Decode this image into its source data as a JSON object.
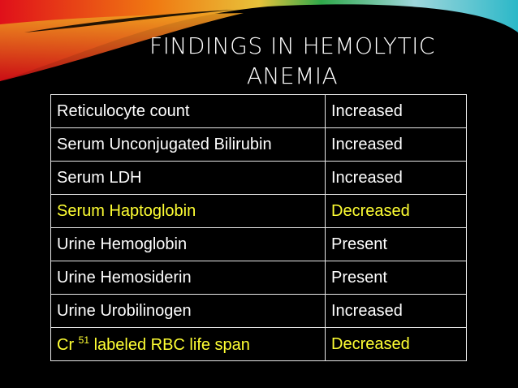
{
  "slide": {
    "title_line1": "FINDINGS IN HEMOLYTIC",
    "title_line2": "ANEMIA",
    "highlight_color": "#ffff33",
    "text_color": "#ffffff",
    "background_color": "#000000"
  },
  "table": {
    "rows": [
      {
        "finding": "Reticulocyte count",
        "result": "Increased",
        "highlight": false
      },
      {
        "finding": "Serum Unconjugated Bilirubin",
        "result": "Increased",
        "highlight": false
      },
      {
        "finding": "Serum LDH",
        "result": "Increased",
        "highlight": false
      },
      {
        "finding": "Serum Haptoglobin",
        "result": "Decreased",
        "highlight": true
      },
      {
        "finding": "Urine Hemoglobin",
        "result": "Present",
        "highlight": false
      },
      {
        "finding": "Urine Hemosiderin",
        "result": "Present",
        "highlight": false
      },
      {
        "finding": "Urine Urobilinogen",
        "result": "Increased",
        "highlight": false
      },
      {
        "finding_prefix": "Cr",
        "finding_sup": "51",
        "finding_suffix": "labeled RBC life span",
        "result": "Decreased",
        "highlight": true
      }
    ]
  }
}
